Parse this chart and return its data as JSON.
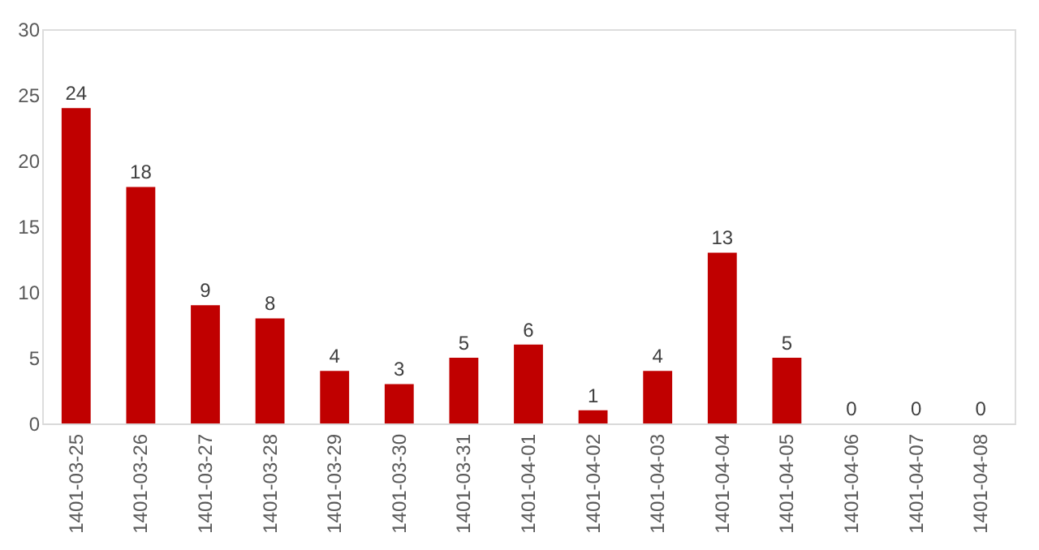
{
  "chart_data": {
    "type": "bar",
    "categories": [
      "1401-03-25",
      "1401-03-26",
      "1401-03-27",
      "1401-03-28",
      "1401-03-29",
      "1401-03-30",
      "1401-03-31",
      "1401-04-01",
      "1401-04-02",
      "1401-04-03",
      "1401-04-04",
      "1401-04-05",
      "1401-04-06",
      "1401-04-07",
      "1401-04-08"
    ],
    "values": [
      24,
      18,
      9,
      8,
      4,
      3,
      5,
      6,
      1,
      4,
      13,
      5,
      0,
      0,
      0
    ],
    "color": "#c00000",
    "ylim": [
      0,
      30
    ],
    "yticks": [
      0,
      5,
      10,
      15,
      20,
      25,
      30
    ],
    "data_labels": true,
    "grid": false
  }
}
